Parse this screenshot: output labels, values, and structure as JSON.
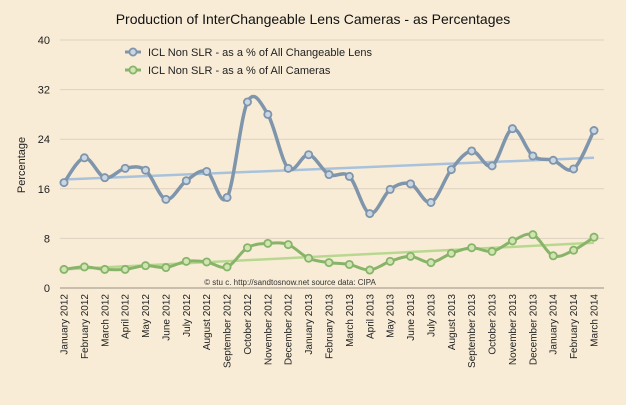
{
  "chart_data": {
    "type": "line",
    "title": "Production of InterChangeable Lens Cameras - as Percentages",
    "ylabel": "Percentage",
    "xlabel": "",
    "ylim": [
      0,
      40
    ],
    "yticks": [
      0,
      8,
      16,
      24,
      32,
      40
    ],
    "grid": "horizontal",
    "legend_position": "top-left",
    "credit": "© stu c. http://sandtosnow.net    source data: CIPA",
    "categories": [
      "January 2012",
      "February 2012",
      "March 2012",
      "April 2012",
      "May 2012",
      "June 2012",
      "July 2012",
      "August 2012",
      "September 2012",
      "October 2012",
      "November 2012",
      "December 2012",
      "January 2013",
      "February 2013",
      "March 2013",
      "April 2013",
      "May 2013",
      "June 2013",
      "July 2013",
      "August 2013",
      "September 2013",
      "October 2013",
      "November 2013",
      "December 2013",
      "January 2014",
      "February 2014",
      "March 2014"
    ],
    "series": [
      {
        "name": "ICL Non SLR   - as a % of All Changeable Lens",
        "color": "#7f95ab",
        "marker_fill": "#c9d6e3",
        "trend_color": "#a9c2dc",
        "trend_values": [
          17.5,
          21.0
        ],
        "values": [
          17.0,
          21.0,
          17.8,
          19.3,
          19.0,
          14.3,
          17.3,
          18.8,
          14.6,
          30.0,
          28.0,
          19.3,
          21.5,
          18.3,
          18.0,
          12.0,
          15.9,
          16.8,
          13.8,
          19.1,
          22.1,
          19.7,
          25.7,
          21.3,
          20.6,
          19.2,
          25.4
        ]
      },
      {
        "name": "ICL Non SLR   - as a % of All Cameras",
        "color": "#88b46a",
        "marker_fill": "#cfe6b3",
        "trend_color": "#b8d890",
        "trend_values": [
          3.0,
          7.3
        ],
        "values": [
          3.0,
          3.4,
          3.0,
          3.0,
          3.6,
          3.3,
          4.3,
          4.2,
          3.4,
          6.5,
          7.2,
          7.0,
          4.8,
          4.1,
          3.8,
          2.9,
          4.3,
          5.1,
          4.1,
          5.6,
          6.5,
          5.9,
          7.6,
          8.6,
          5.2,
          6.1,
          8.2
        ]
      }
    ]
  }
}
